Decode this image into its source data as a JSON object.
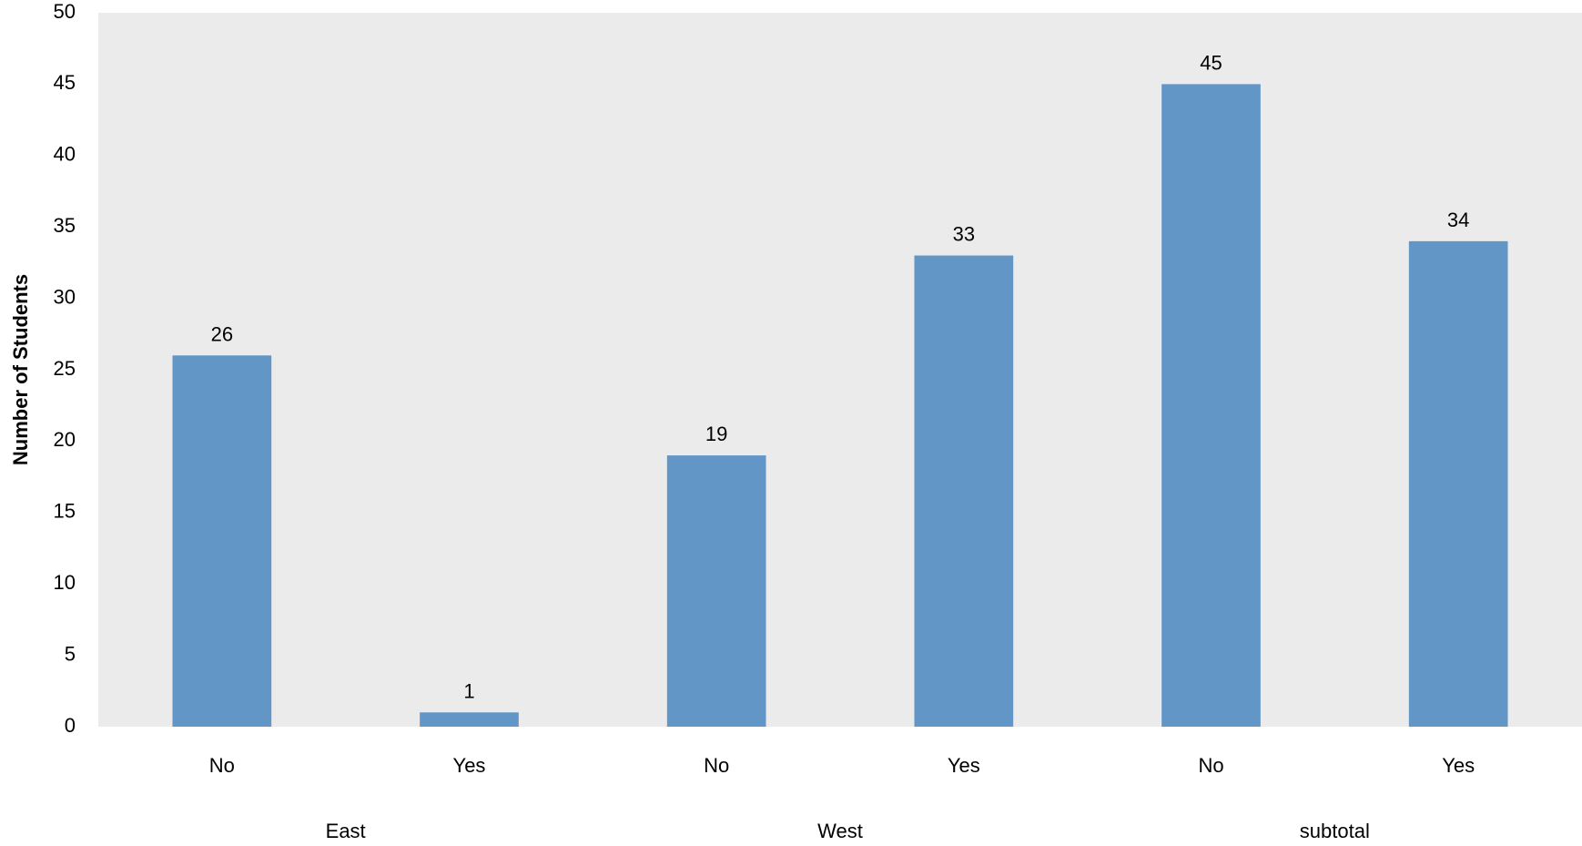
{
  "chart_data": {
    "type": "bar",
    "ylabel": "Number of Students",
    "ylim": [
      0,
      50
    ],
    "yticks": [
      0,
      5,
      10,
      15,
      20,
      25,
      30,
      35,
      40,
      45,
      50
    ],
    "grid": false,
    "legend": "none",
    "groups": [
      {
        "label": "East",
        "categories": [
          "No",
          "Yes"
        ],
        "values": [
          26,
          1
        ]
      },
      {
        "label": "West",
        "categories": [
          "No",
          "Yes"
        ],
        "values": [
          19,
          33
        ]
      },
      {
        "label": "subtotal",
        "categories": [
          "No",
          "Yes"
        ],
        "values": [
          45,
          34
        ]
      }
    ],
    "colors": {
      "bar": "#6196c7",
      "plot_background": "#ebebeb"
    }
  }
}
